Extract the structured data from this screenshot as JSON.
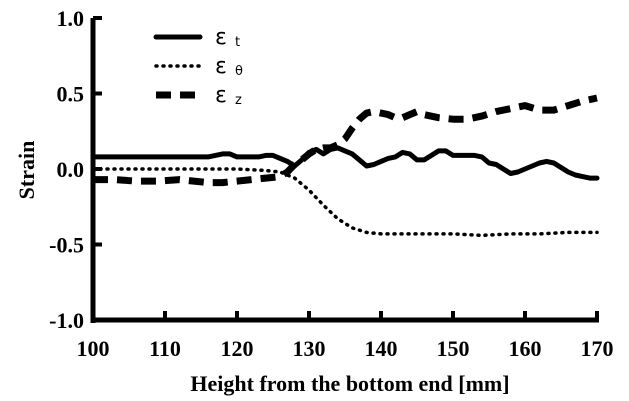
{
  "chart_data": {
    "type": "line",
    "xlabel": "Height from the bottom end [mm]",
    "ylabel": "Strain",
    "xlim": [
      100,
      170
    ],
    "ylim": [
      -1.0,
      1.0
    ],
    "x_ticks": [
      "100",
      "110",
      "120",
      "130",
      "140",
      "150",
      "160",
      "170"
    ],
    "y_ticks": [
      "1.0",
      "0.5",
      "0.0",
      "-0.5",
      "-1.0"
    ],
    "grid": false,
    "legend_position": "top-left",
    "series": [
      {
        "name": "ε t",
        "symbol": "ε",
        "subscript": "t",
        "style": "solid",
        "x": [
          100,
          102,
          104,
          106,
          108,
          110,
          112,
          114,
          116,
          117,
          118,
          119,
          120,
          121,
          122,
          123,
          124,
          125,
          126,
          127,
          128,
          129,
          130,
          131,
          132,
          133,
          134,
          135,
          136,
          137,
          138,
          139,
          140,
          141,
          142,
          143,
          144,
          145,
          146,
          147,
          148,
          149,
          150,
          151,
          152,
          153,
          154,
          155,
          156,
          157,
          158,
          159,
          160,
          161,
          162,
          163,
          164,
          165,
          166,
          167,
          168,
          169,
          170
        ],
        "values": [
          0.08,
          0.08,
          0.08,
          0.08,
          0.08,
          0.08,
          0.08,
          0.08,
          0.08,
          0.09,
          0.1,
          0.1,
          0.08,
          0.08,
          0.08,
          0.08,
          0.09,
          0.09,
          0.07,
          0.05,
          0.02,
          0.06,
          0.11,
          0.13,
          0.1,
          0.13,
          0.14,
          0.12,
          0.1,
          0.06,
          0.02,
          0.03,
          0.05,
          0.07,
          0.08,
          0.11,
          0.1,
          0.06,
          0.06,
          0.09,
          0.12,
          0.12,
          0.09,
          0.09,
          0.09,
          0.09,
          0.08,
          0.04,
          0.03,
          0.0,
          -0.03,
          -0.02,
          0.0,
          0.02,
          0.04,
          0.05,
          0.04,
          0.01,
          -0.02,
          -0.04,
          -0.05,
          -0.06,
          -0.06
        ]
      },
      {
        "name": "ε θ",
        "symbol": "ε",
        "subscript": "θ",
        "style": "dotted",
        "x": [
          100,
          105,
          110,
          115,
          120,
          124,
          126,
          128,
          130,
          132,
          134,
          136,
          138,
          140,
          143,
          146,
          150,
          154,
          158,
          162,
          166,
          170
        ],
        "values": [
          0.0,
          0.0,
          0.0,
          0.0,
          0.0,
          -0.01,
          -0.02,
          -0.06,
          -0.14,
          -0.24,
          -0.33,
          -0.39,
          -0.42,
          -0.43,
          -0.43,
          -0.43,
          -0.43,
          -0.44,
          -0.43,
          -0.43,
          -0.42,
          -0.42
        ]
      },
      {
        "name": "ε z",
        "symbol": "ε",
        "subscript": "z",
        "style": "dashed",
        "x": [
          100,
          103,
          106,
          109,
          112,
          114,
          116,
          118,
          120,
          122,
          124,
          126,
          127,
          128,
          129,
          130,
          131,
          132,
          133,
          134,
          135,
          136,
          137,
          138,
          139,
          140,
          141,
          142,
          143,
          144,
          145,
          146,
          148,
          150,
          152,
          154,
          156,
          158,
          160,
          162,
          164,
          166,
          168,
          170
        ],
        "values": [
          -0.07,
          -0.07,
          -0.08,
          -0.08,
          -0.07,
          -0.08,
          -0.09,
          -0.09,
          -0.08,
          -0.07,
          -0.06,
          -0.05,
          -0.02,
          0.03,
          0.06,
          0.1,
          0.13,
          0.14,
          0.14,
          0.16,
          0.2,
          0.27,
          0.33,
          0.37,
          0.38,
          0.37,
          0.36,
          0.34,
          0.34,
          0.36,
          0.38,
          0.36,
          0.34,
          0.33,
          0.33,
          0.35,
          0.38,
          0.4,
          0.42,
          0.39,
          0.39,
          0.42,
          0.45,
          0.47
        ]
      }
    ]
  }
}
